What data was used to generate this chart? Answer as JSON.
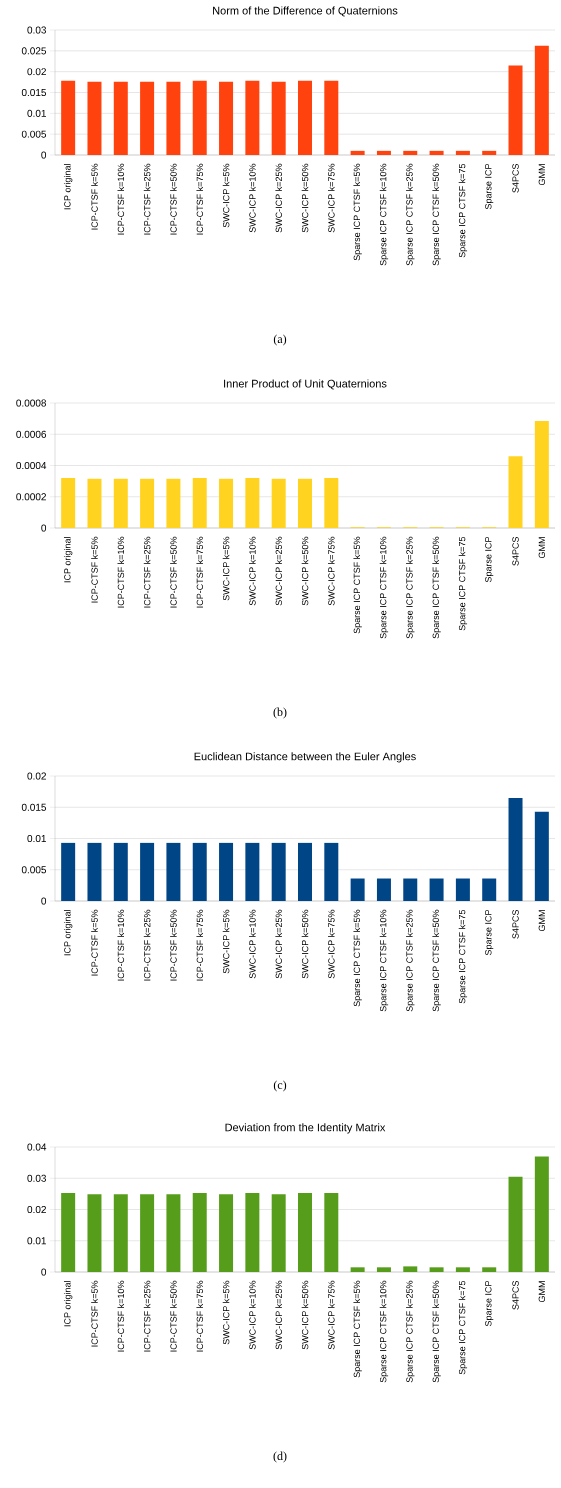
{
  "chart_data": [
    {
      "type": "bar",
      "title": "Norm of the Difference of Quaternions",
      "categories": [
        "ICP original",
        "ICP-CTSF k=5%",
        "ICP-CTSF k=10%",
        "ICP-CTSF k=25%",
        "ICP-CTSF k=50%",
        "ICP-CTSF k=75%",
        "SWC-ICP k=5%",
        "SWC-ICP k=10%",
        "SWC-ICP k=25%",
        "SWC-ICP k=50%",
        "SWC-ICP k=75%",
        "Sparse ICP CTSF k=5%",
        "Sparse ICP CTSF k=10%",
        "Sparse ICP CTSF k=25%",
        "Sparse ICP CTSF k=50%",
        "Sparse ICP CTSF k=75",
        "Sparse ICP",
        "S4PCS",
        "GMM"
      ],
      "values": [
        0.0178,
        0.0176,
        0.0176,
        0.0176,
        0.0176,
        0.0178,
        0.0176,
        0.0178,
        0.0176,
        0.0178,
        0.0178,
        0.001,
        0.001,
        0.001,
        0.001,
        0.001,
        0.001,
        0.0215,
        0.0262
      ],
      "color": "#ff420e",
      "ylim": [
        0,
        0.03
      ],
      "yticks": [
        0,
        0.005,
        0.01,
        0.015,
        0.02,
        0.025,
        0.03
      ],
      "grid": "y",
      "annotations": [
        "(a)"
      ]
    },
    {
      "type": "bar",
      "title": "Inner Product of Unit Quaternions",
      "categories": [
        "ICP original",
        "ICP-CTSF k=5%",
        "ICP-CTSF k=10%",
        "ICP-CTSF k=25%",
        "ICP-CTSF k=50%",
        "ICP-CTSF k=75%",
        "SWC-ICP k=5%",
        "SWC-ICP k=10%",
        "SWC-ICP k=25%",
        "SWC-ICP k=50%",
        "SWC-ICP k=75%",
        "Sparse ICP CTSF k=5%",
        "Sparse ICP CTSF k=10%",
        "Sparse ICP CTSF k=25%",
        "Sparse ICP CTSF k=50%",
        "Sparse ICP CTSF k=75",
        "Sparse ICP",
        "S4PCS",
        "GMM"
      ],
      "values": [
        0.00032,
        0.000315,
        0.000315,
        0.000315,
        0.000315,
        0.00032,
        0.000315,
        0.00032,
        0.000315,
        0.000315,
        0.00032,
        5e-06,
        5e-06,
        5e-06,
        5e-06,
        5e-06,
        5e-06,
        0.00046,
        0.000685
      ],
      "color": "#ffd320",
      "ylim": [
        0,
        0.0008
      ],
      "yticks": [
        0,
        0.0002,
        0.0004,
        0.0006,
        0.0008
      ],
      "grid": "y",
      "annotations": [
        "(b)"
      ]
    },
    {
      "type": "bar",
      "title": "Euclidean Distance between the Euler Angles",
      "categories": [
        "ICP original",
        "ICP-CTSF k=5%",
        "ICP-CTSF k=10%",
        "ICP-CTSF k=25%",
        "ICP-CTSF k=50%",
        "ICP-CTSF k=75%",
        "SWC-ICP k=5%",
        "SWC-ICP k=10%",
        "SWC-ICP k=25%",
        "SWC-ICP k=50%",
        "SWC-ICP k=75%",
        "Sparse ICP CTSF k=5%",
        "Sparse ICP CTSF k=10%",
        "Sparse ICP CTSF k=25%",
        "Sparse ICP CTSF k=50%",
        "Sparse ICP CTSF k=75",
        "Sparse ICP",
        "S4PCS",
        "GMM"
      ],
      "values": [
        0.0093,
        0.0093,
        0.0093,
        0.0093,
        0.0093,
        0.0093,
        0.0093,
        0.0093,
        0.0093,
        0.0093,
        0.0093,
        0.0036,
        0.0036,
        0.0036,
        0.0036,
        0.0036,
        0.0036,
        0.0165,
        0.0143
      ],
      "color": "#004586",
      "ylim": [
        0,
        0.02
      ],
      "yticks": [
        0,
        0.005,
        0.01,
        0.015,
        0.02
      ],
      "grid": "y",
      "annotations": [
        "(c)"
      ]
    },
    {
      "type": "bar",
      "title": "Deviation from the Identity Matrix",
      "categories": [
        "ICP original",
        "ICP-CTSF k=5%",
        "ICP-CTSF k=10%",
        "ICP-CTSF k=25%",
        "ICP-CTSF k=50%",
        "ICP-CTSF k=75%",
        "SWC-ICP k=5%",
        "SWC-ICP k=10%",
        "SWC-ICP k=25%",
        "SWC-ICP k=50%",
        "SWC-ICP k=75%",
        "Sparse ICP CTSF k=5%",
        "Sparse ICP CTSF k=10%",
        "Sparse ICP CTSF k=25%",
        "Sparse ICP CTSF k=50%",
        "Sparse ICP CTSF k=75",
        "Sparse ICP",
        "S4PCS",
        "GMM"
      ],
      "values": [
        0.0253,
        0.0249,
        0.0249,
        0.0249,
        0.0249,
        0.0253,
        0.0249,
        0.0253,
        0.0249,
        0.0253,
        0.0253,
        0.0015,
        0.0015,
        0.0018,
        0.0015,
        0.0015,
        0.0015,
        0.0305,
        0.037
      ],
      "color": "#579d1c",
      "ylim": [
        0,
        0.04
      ],
      "yticks": [
        0,
        0.01,
        0.02,
        0.03,
        0.04
      ],
      "grid": "y",
      "annotations": [
        "(d)"
      ]
    }
  ]
}
